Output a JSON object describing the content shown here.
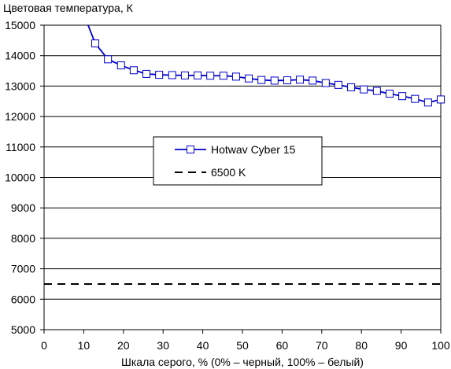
{
  "chart_data": {
    "type": "line",
    "ylabel": "Цветовая температура, К",
    "xlabel": "Шкала серого, % (0% – черный, 100% – белый)",
    "xlim": [
      0,
      100
    ],
    "ylim": [
      5000,
      15000
    ],
    "xticks": [
      0,
      10,
      20,
      30,
      40,
      50,
      60,
      70,
      80,
      90,
      100
    ],
    "yticks": [
      5000,
      6000,
      7000,
      8000,
      9000,
      10000,
      11000,
      12000,
      13000,
      14000,
      15000
    ],
    "grid": "horizontal",
    "legend_position": "center-left",
    "series": [
      {
        "name": "Hotwav Cyber 15",
        "color": "#0000cc",
        "marker": "square",
        "x": [
          12.9,
          16.1,
          19.4,
          22.6,
          25.8,
          29.0,
          32.3,
          35.5,
          38.7,
          41.9,
          45.2,
          48.4,
          51.6,
          54.8,
          58.1,
          61.3,
          64.5,
          67.7,
          71.0,
          74.2,
          77.4,
          80.6,
          83.9,
          87.1,
          90.3,
          93.5,
          96.8,
          100.0
        ],
        "y": [
          14400,
          13880,
          13680,
          13520,
          13400,
          13370,
          13360,
          13350,
          13350,
          13340,
          13340,
          13310,
          13250,
          13200,
          13180,
          13190,
          13210,
          13180,
          13100,
          13040,
          12960,
          12890,
          12840,
          12750,
          12670,
          12580,
          12460,
          12560
        ],
        "lead_in": {
          "x": [
            11.1,
            12.9
          ],
          "y": [
            15000,
            14400
          ]
        }
      },
      {
        "name": "6500 K",
        "color": "#000000",
        "style": "dashed",
        "x": [
          0,
          100
        ],
        "y": [
          6500,
          6500
        ]
      }
    ]
  }
}
